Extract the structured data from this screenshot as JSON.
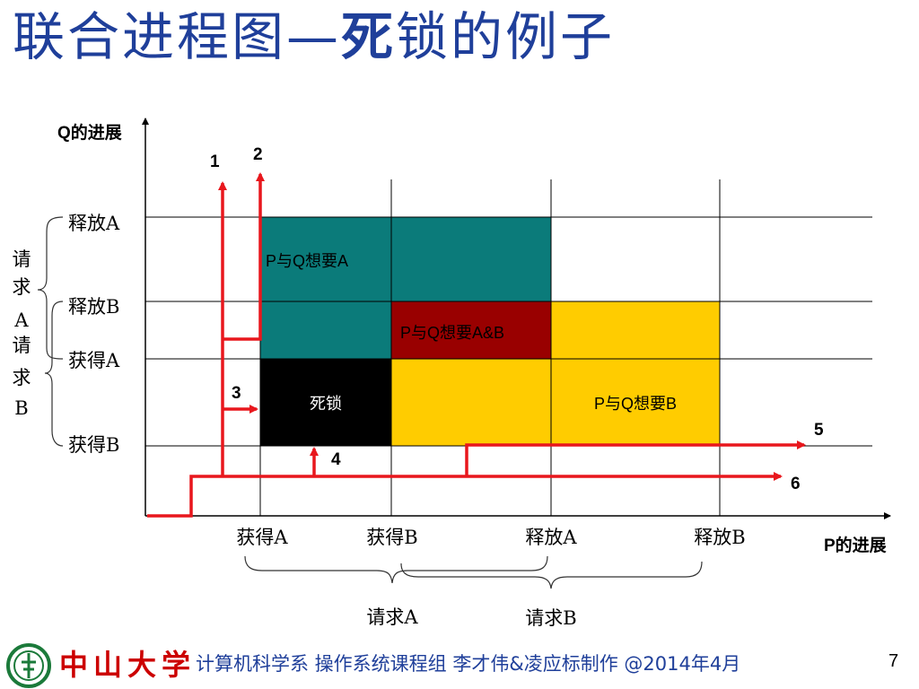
{
  "slide": {
    "title_main": "联合进程图—",
    "title_bold": "死",
    "title_rest": "锁的例子",
    "page_number": "7"
  },
  "axes": {
    "y_label": "Q的进展",
    "x_label": "P的进展"
  },
  "y_events": [
    "释放A",
    "释放B",
    "获得A",
    "获得B"
  ],
  "x_events": [
    "获得A",
    "获得B",
    "释放A",
    "释放B"
  ],
  "regions": {
    "want_a": "P与Q想要A",
    "want_ab": "P与Q想要A&B",
    "deadlock": "死锁",
    "want_b": "P与Q想要B"
  },
  "left_braces": {
    "request_a": [
      "请",
      "求",
      "A"
    ],
    "request_b": [
      "请",
      "求",
      "B"
    ]
  },
  "bottom_braces": {
    "request_a": "请求A",
    "request_b": "请求B"
  },
  "paths": [
    "1",
    "2",
    "3",
    "4",
    "5",
    "6"
  ],
  "colors": {
    "teal": "#0b7b7a",
    "dark_red": "#990000",
    "gold": "#ffcc00",
    "black": "#000000",
    "path_red": "#e8171d",
    "title_blue": "#1f3f9a",
    "logo_red": "#cc0000",
    "logo_green": "#1b7a3a"
  },
  "footer": {
    "logo_text": "中山大学",
    "credit": "计算机科学系 操作系统课程组 李才伟&凌应标制作 @2014年4月"
  }
}
